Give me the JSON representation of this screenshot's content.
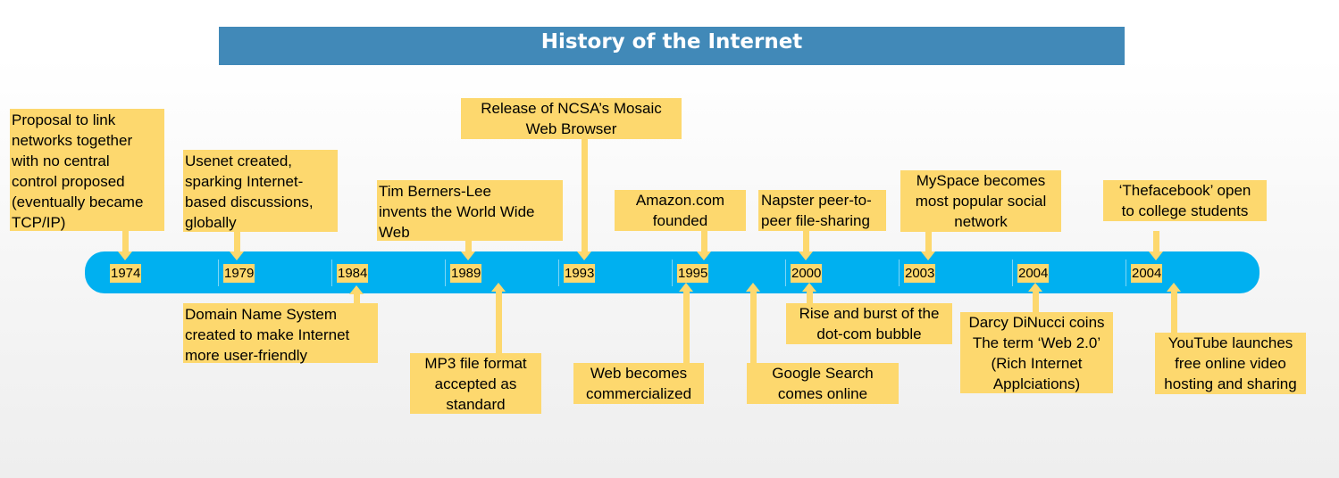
{
  "title": "History of the Internet",
  "years": [
    "1974",
    "1979",
    "1984",
    "1989",
    "1993",
    "1995",
    "2000",
    "2003",
    "2004",
    "2004"
  ],
  "events": {
    "proposal": "Proposal to link\nnetworks together\nwith no central\ncontrol proposed\n(eventually became\nTCP/IP)",
    "usenet": "Usenet created,\nsparking Internet-\nbased discussions,\nglobally",
    "berners_lee": "Tim Berners-Lee\ninvents the World Wide\nWeb",
    "mosaic": "Release of NCSA’s Mosaic\nWeb Browser",
    "amazon": "Amazon.com\nfounded",
    "napster": "Napster peer-to-\npeer file-sharing",
    "myspace": "MySpace becomes\nmost popular social\nnetwork",
    "thefacebook": "‘Thefacebook’ open\nto college students",
    "dns": "Domain Name System\ncreated to make Internet\nmore user-friendly",
    "mp3": "MP3 file format\naccepted as\nstandard",
    "web_commercialized": "Web becomes\ncommercialized",
    "google": "Google Search\ncomes online",
    "dotcom": "Rise and burst of the\ndot-com bubble",
    "web20": "Darcy DiNucci coins\nThe term ‘Web 2.0’\n(Rich Internet\nApplciations)",
    "youtube": "YouTube launches\nfree online video\nhosting and sharing"
  }
}
